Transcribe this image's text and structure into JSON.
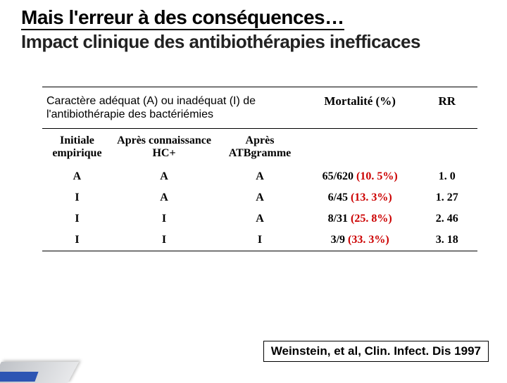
{
  "title": {
    "line1": "Mais l'erreur à des conséquences…",
    "line2": "Impact clinique des antibiothérapies inefficaces"
  },
  "table": {
    "header1": {
      "span_label": "Caractère adéquat (A) ou inadéquat (I) de l'antibiothérapie des bactériémies",
      "mortality": "Mortalité (%)",
      "rr": "RR"
    },
    "header2": {
      "col1": "Initiale empirique",
      "col2": "Après connaissance HC+",
      "col3": "Après ATBgramme"
    },
    "rows": [
      {
        "c1": "A",
        "c2": "A",
        "c3": "A",
        "mort_n": "65/620",
        "mort_pct": "(10. 5%)",
        "rr": "1. 0"
      },
      {
        "c1": "I",
        "c2": "A",
        "c3": "A",
        "mort_n": "6/45",
        "mort_pct": "(13. 3%)",
        "rr": "1. 27"
      },
      {
        "c1": "I",
        "c2": "I",
        "c3": "A",
        "mort_n": "8/31",
        "mort_pct": "(25. 8%)",
        "rr": "2. 46"
      },
      {
        "c1": "I",
        "c2": "I",
        "c3": "I",
        "mort_n": "3/9",
        "mort_pct": "(33. 3%)",
        "rr": "3. 18"
      }
    ],
    "col_widths": [
      "16%",
      "24%",
      "20%",
      "26%",
      "14%"
    ],
    "pct_color": "#cc0000"
  },
  "citation": "Weinstein, et al, Clin. Infect. Dis 1997"
}
